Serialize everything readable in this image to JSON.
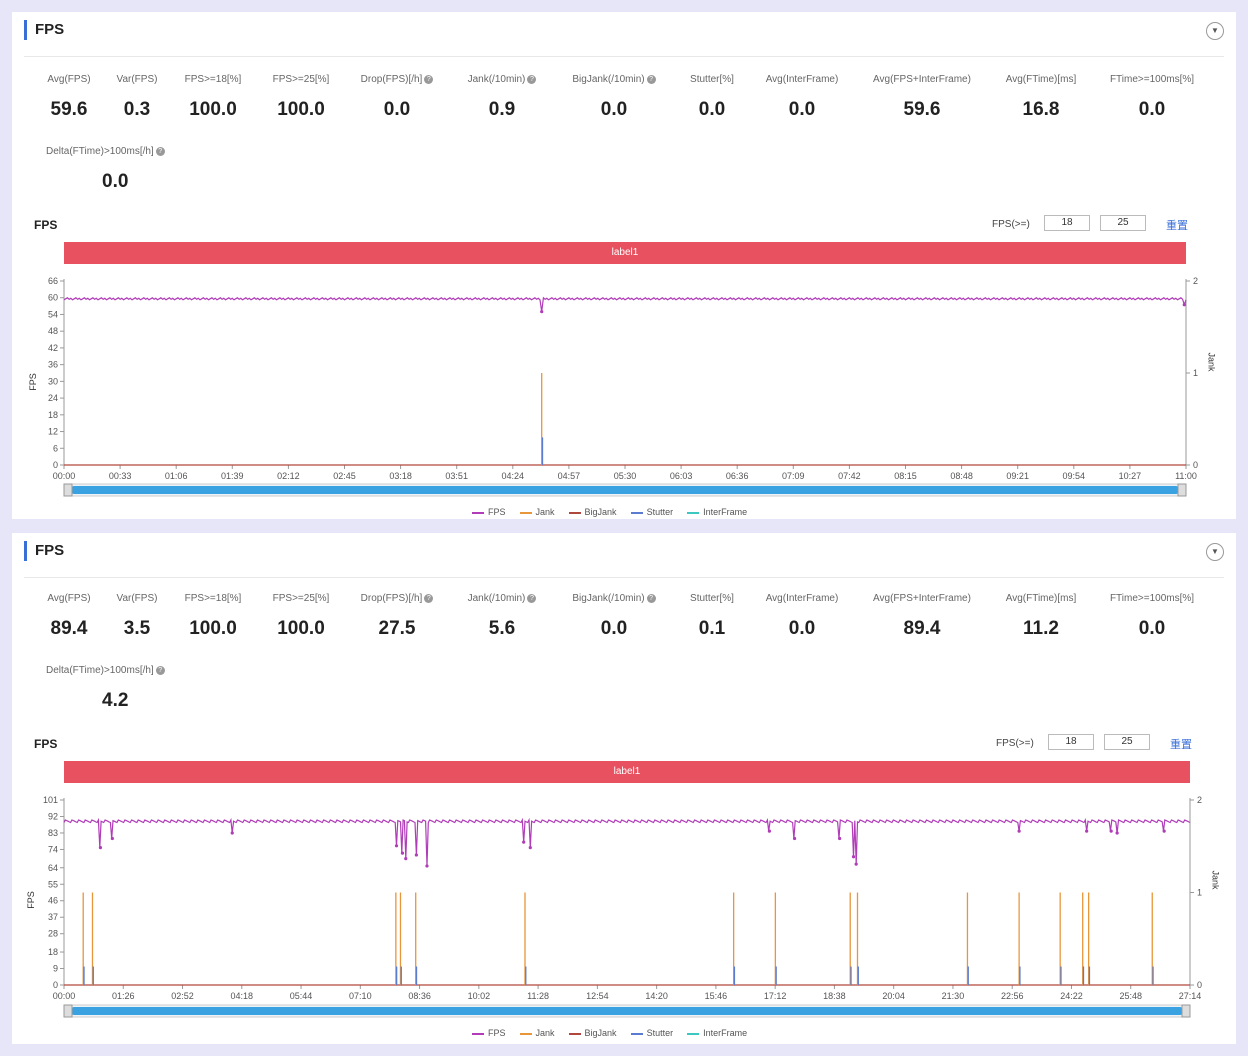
{
  "chart_data": [
    {
      "type": "line",
      "panel_title": "FPS",
      "title": "FPS",
      "xlabel": "",
      "ylabel": "FPS",
      "y2label": "Jank",
      "band_label": "label1",
      "ylim": [
        0,
        66
      ],
      "yticks": [
        0,
        6,
        12,
        18,
        24,
        30,
        36,
        42,
        48,
        54,
        60,
        66
      ],
      "y2lim": [
        0,
        2
      ],
      "y2ticks": [
        0,
        1,
        2
      ],
      "xticks": [
        "00:00",
        "00:33",
        "01:06",
        "01:39",
        "02:12",
        "02:45",
        "03:18",
        "03:51",
        "04:24",
        "04:57",
        "05:30",
        "06:03",
        "06:36",
        "07:09",
        "07:42",
        "08:15",
        "08:48",
        "09:21",
        "09:54",
        "10:27",
        "11:00"
      ],
      "x_max_seconds": 660,
      "legend": [
        "FPS",
        "Jank",
        "BigJank",
        "Stutter",
        "InterFrame"
      ],
      "series": [
        {
          "name": "FPS",
          "baseline": 59.6,
          "dips": [
            [
              281,
              55
            ],
            [
              659,
              57.5
            ]
          ]
        },
        {
          "name": "Jank",
          "spikes": [
            [
              281,
              1
            ]
          ]
        },
        {
          "name": "BigJank",
          "spikes": []
        },
        {
          "name": "Stutter",
          "spikes": [
            [
              281,
              0.3
            ]
          ]
        },
        {
          "name": "InterFrame",
          "spikes": []
        }
      ]
    },
    {
      "type": "line",
      "panel_title": "FPS",
      "title": "FPS",
      "xlabel": "",
      "ylabel": "FPS",
      "y2label": "Jank",
      "band_label": "label1",
      "ylim": [
        0,
        101
      ],
      "yticks": [
        0,
        9,
        18,
        28,
        37,
        46,
        55,
        64,
        74,
        83,
        92,
        101
      ],
      "y2lim": [
        0,
        2
      ],
      "y2ticks": [
        0,
        1,
        2
      ],
      "xticks": [
        "00:00",
        "01:26",
        "02:52",
        "04:18",
        "05:44",
        "07:10",
        "08:36",
        "10:02",
        "11:28",
        "12:54",
        "14:20",
        "15:46",
        "17:12",
        "18:38",
        "20:04",
        "21:30",
        "22:56",
        "24:22",
        "25:48",
        "27:14"
      ],
      "x_max_seconds": 1700,
      "legend": [
        "FPS",
        "Jank",
        "BigJank",
        "Stutter",
        "InterFrame"
      ],
      "series": [
        {
          "name": "FPS",
          "baseline": 89.4,
          "dips": [
            [
              55,
              75
            ],
            [
              73,
              80
            ],
            [
              254,
              83
            ],
            [
              502,
              76
            ],
            [
              511,
              72
            ],
            [
              516,
              69
            ],
            [
              532,
              71
            ],
            [
              548,
              65
            ],
            [
              694,
              78
            ],
            [
              704,
              75
            ],
            [
              1065,
              84
            ],
            [
              1103,
              80
            ],
            [
              1171,
              80
            ],
            [
              1192,
              70
            ],
            [
              1196,
              66
            ],
            [
              1442,
              84
            ],
            [
              1544,
              84
            ],
            [
              1581,
              84
            ],
            [
              1590,
              83
            ],
            [
              1661,
              84
            ]
          ]
        },
        {
          "name": "Jank",
          "spikes": [
            [
              29,
              1
            ],
            [
              43,
              1
            ],
            [
              501,
              1
            ],
            [
              508,
              1
            ],
            [
              531,
              1
            ],
            [
              696,
              1
            ],
            [
              1011,
              1
            ],
            [
              1074,
              1
            ],
            [
              1187,
              1
            ],
            [
              1198,
              1
            ],
            [
              1364,
              1
            ],
            [
              1442,
              1
            ],
            [
              1504,
              1
            ],
            [
              1538,
              1
            ],
            [
              1547,
              1
            ],
            [
              1643,
              1
            ]
          ]
        },
        {
          "name": "BigJank",
          "spikes": []
        },
        {
          "name": "Stutter",
          "spikes": [
            [
              29,
              0.2
            ],
            [
              43,
              0.2
            ],
            [
              501,
              0.2
            ],
            [
              508,
              0.2
            ],
            [
              531,
              0.2
            ],
            [
              696,
              0.2
            ],
            [
              1011,
              0.2
            ],
            [
              1074,
              0.2
            ],
            [
              1187,
              0.2
            ],
            [
              1198,
              0.2
            ],
            [
              1364,
              0.2
            ],
            [
              1442,
              0.2
            ],
            [
              1504,
              0.2
            ],
            [
              1538,
              0.2
            ],
            [
              1547,
              0.2
            ],
            [
              1643,
              0.2
            ]
          ]
        },
        {
          "name": "InterFrame",
          "spikes": []
        }
      ]
    }
  ],
  "panels": [
    {
      "title": "FPS",
      "collapse_icon": "chevron-down-icon",
      "metrics": [
        {
          "label": "Avg(FPS)",
          "value": "59.6",
          "help": false
        },
        {
          "label": "Var(FPS)",
          "value": "0.3",
          "help": false
        },
        {
          "label": "FPS>=18[%]",
          "value": "100.0",
          "help": false
        },
        {
          "label": "FPS>=25[%]",
          "value": "100.0",
          "help": false
        },
        {
          "label": "Drop(FPS)[/h]",
          "value": "0.0",
          "help": true
        },
        {
          "label": "Jank(/10min)",
          "value": "0.9",
          "help": true
        },
        {
          "label": "BigJank(/10min)",
          "value": "0.0",
          "help": true
        },
        {
          "label": "Stutter[%]",
          "value": "0.0",
          "help": false
        },
        {
          "label": "Avg(InterFrame)",
          "value": "0.0",
          "help": false
        },
        {
          "label": "Avg(FPS+InterFrame)",
          "value": "59.6",
          "help": false
        },
        {
          "label": "Avg(FTime)[ms]",
          "value": "16.8",
          "help": false
        },
        {
          "label": "FTime>=100ms[%]",
          "value": "0.0",
          "help": false
        }
      ],
      "metric2": {
        "label": "Delta(FTime)>100ms[/h]",
        "value": "0.0",
        "help": true
      },
      "fps_filter": {
        "label": "FPS(>=)",
        "value1": "18",
        "value2": "25",
        "reset": "重置"
      },
      "legend": [
        "FPS",
        "Jank",
        "BigJank",
        "Stutter",
        "InterFrame"
      ]
    },
    {
      "title": "FPS",
      "collapse_icon": "chevron-down-icon",
      "metrics": [
        {
          "label": "Avg(FPS)",
          "value": "89.4",
          "help": false
        },
        {
          "label": "Var(FPS)",
          "value": "3.5",
          "help": false
        },
        {
          "label": "FPS>=18[%]",
          "value": "100.0",
          "help": false
        },
        {
          "label": "FPS>=25[%]",
          "value": "100.0",
          "help": false
        },
        {
          "label": "Drop(FPS)[/h]",
          "value": "27.5",
          "help": true
        },
        {
          "label": "Jank(/10min)",
          "value": "5.6",
          "help": true
        },
        {
          "label": "BigJank(/10min)",
          "value": "0.0",
          "help": true
        },
        {
          "label": "Stutter[%]",
          "value": "0.1",
          "help": false
        },
        {
          "label": "Avg(InterFrame)",
          "value": "0.0",
          "help": false
        },
        {
          "label": "Avg(FPS+InterFrame)",
          "value": "89.4",
          "help": false
        },
        {
          "label": "Avg(FTime)[ms]",
          "value": "11.2",
          "help": false
        },
        {
          "label": "FTime>=100ms[%]",
          "value": "0.0",
          "help": false
        }
      ],
      "metric2": {
        "label": "Delta(FTime)>100ms[/h]",
        "value": "4.2",
        "help": true
      },
      "fps_filter": {
        "label": "FPS(>=)",
        "value1": "18",
        "value2": "25",
        "reset": "重置"
      },
      "legend": [
        "FPS",
        "Jank",
        "BigJank",
        "Stutter",
        "InterFrame"
      ]
    }
  ],
  "colors": {
    "FPS": "#b03cb8",
    "Jank": "#e8963a",
    "BigJank": "#b0473c",
    "Stutter": "#5a7bd0",
    "InterFrame": "#3cc8c0",
    "band": "#e8515f",
    "scrollbar": "#3aa2e0",
    "accent": "#3a6fd8"
  }
}
